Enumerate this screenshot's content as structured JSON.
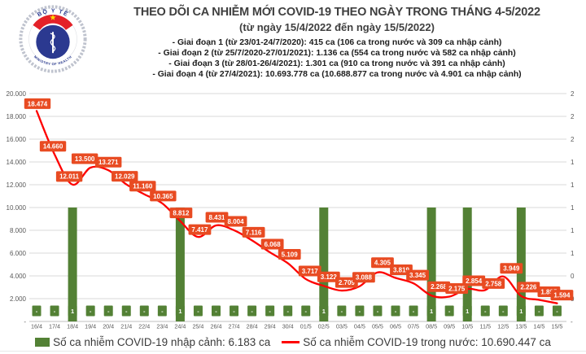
{
  "logo": {
    "top_text": "BỘ Y TẾ",
    "bottom_text": "MINISTRY OF HEALTH"
  },
  "header": {
    "title": "THEO DÕI CA NHIỄM MỚI COVID-19 THEO NGÀY TRONG THÁNG 4-5/2022",
    "subtitle": "(từ ngày 15/4/2022 đến ngày 15/5/2022)",
    "bullets": [
      "- Giai đoạn 1 (từ 23/01-24/7/2020): 415 ca (106 ca trong nước và 309 ca nhập cảnh)",
      "- Giai đoạn 2 (từ 25/7/2020-27/01/2021): 1.136 ca (554 ca trong nước và 582 ca nhập cảnh)",
      "- Giai đoạn 3 (từ 28/01-26/4/2021): 1.301 ca (910 ca trong nước và 391 ca nhập cảnh)",
      "- Giai đoạn 4 (từ 27/4/2021): 10.693.778 ca (10.688.877 ca trong nước và 4.901 ca nhập cảnh)"
    ]
  },
  "chart_data": {
    "type": "line+bar",
    "categories": [
      "16/4",
      "17/4",
      "18/4",
      "19/4",
      "20/4",
      "21/4",
      "22/4",
      "23/4",
      "24/4",
      "25/4",
      "26/4",
      "27/4",
      "28/4",
      "29/4",
      "30/4",
      "01/5",
      "02/5",
      "03/5",
      "04/5",
      "05/5",
      "06/5",
      "07/5",
      "08/5",
      "09/5",
      "10/5",
      "11/5",
      "12/5",
      "13/5",
      "14/5",
      "15/5"
    ],
    "series": [
      {
        "name": "Số ca nhiễm COVID-19 trong nước",
        "type": "line",
        "axis": "left",
        "color": "#fe0000",
        "values": [
          18474,
          14660,
          12011,
          13500,
          13271,
          12029,
          11160,
          10365,
          8812,
          7417,
          8431,
          8004,
          7116,
          6068,
          5109,
          3717,
          3122,
          2709,
          3088,
          4305,
          3819,
          3345,
          2268,
          2175,
          2854,
          2758,
          3949,
          2226,
          1895,
          1594
        ],
        "labels": [
          "18.474",
          "14.660",
          "12.011",
          "13.500",
          "13.271",
          "12.029",
          "11.160",
          "10.365",
          "8.812",
          "7.417",
          "8.431",
          "8.004",
          "7.116",
          "6.068",
          "5.109",
          "3.717",
          "3.122",
          "2.709",
          "3.088",
          "4.305",
          "3.819",
          "3.345",
          "2.268",
          "2.175",
          "2.854",
          "2.758",
          "3.949",
          "2.226",
          "1.895",
          "1.594"
        ]
      },
      {
        "name": "Số ca nhiễm COVID-19 nhập cảnh",
        "type": "bar",
        "axis": "right",
        "color": "#538135",
        "values": [
          0,
          0,
          1,
          0,
          0,
          0,
          0,
          0,
          1,
          0,
          0,
          0,
          0,
          0,
          0,
          0,
          1,
          0,
          0,
          0,
          0,
          0,
          1,
          0,
          1,
          0,
          0,
          1,
          0,
          0
        ],
        "labels": [
          "-",
          "-",
          "1",
          "-",
          "-",
          "-",
          "-",
          "-",
          "1",
          "-",
          "-",
          "-",
          "-",
          "-",
          "-",
          "-",
          "1",
          "-",
          "-",
          "-",
          "-",
          "-",
          "1",
          "-",
          "1",
          "-",
          "-",
          "1",
          "-",
          "-"
        ]
      }
    ],
    "left_axis": {
      "min": 0,
      "max": 20000,
      "ticks": [
        "20.000",
        "18.000",
        "16.000",
        "14.000",
        "12.000",
        "10.000",
        "8.000",
        "6.000",
        "4.000",
        "2.000",
        "-"
      ]
    },
    "right_axis": {
      "min": 0,
      "max": 2,
      "ticks": [
        "2",
        "2",
        "2",
        "1",
        "1",
        "1",
        "1",
        "1",
        "0",
        "0",
        "-"
      ]
    },
    "grid": true,
    "label_box_color": "#e84b22",
    "gridline_color": "#d9d9d9",
    "axis_text_color": "#595959"
  },
  "legend": {
    "bar_label": "Số ca nhiễm COVID-19 nhập cảnh: 6.183 ca",
    "line_label": "Số ca nhiễm COVID-19 trong nước: 10.690.447 ca"
  }
}
